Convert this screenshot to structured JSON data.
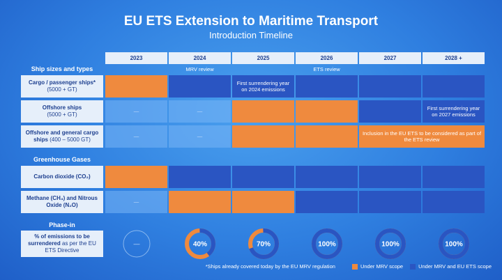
{
  "header": {
    "title": "EU ETS Extension to Maritime Transport",
    "subtitle": "Introduction Timeline"
  },
  "table": {
    "years": [
      "2023",
      "2024",
      "2025",
      "2026",
      "2027",
      "2028 +"
    ],
    "reviews": [
      null,
      "MRV review",
      null,
      "ETS review",
      null,
      null
    ],
    "sections": [
      {
        "title": "Ship sizes and types",
        "rows": [
          {
            "label": "Cargo / passenger ships*",
            "sublabel": "(5000 + GT)",
            "cells": [
              {
                "scope": 0
              },
              {
                "scope": 1
              },
              {
                "scope": 1,
                "text": "First surrendering year on 2024 emissions"
              },
              {
                "scope": 1
              },
              {
                "scope": 1
              },
              {
                "scope": 1
              }
            ]
          },
          {
            "label": "Offshore ships",
            "sublabel": "(5000 + GT)",
            "cells": [
              {
                "scope": null,
                "text": "—"
              },
              {
                "scope": null,
                "text": "—"
              },
              {
                "scope": 0
              },
              {
                "scope": 0
              },
              {
                "scope": 1
              },
              {
                "scope": 1,
                "text": "First surrendering year on 2027 emissions"
              }
            ]
          },
          {
            "label": "Offshore and general cargo ships",
            "sublabel": "(400 – 5000 GT)",
            "cells": [
              {
                "scope": null,
                "text": "—"
              },
              {
                "scope": null,
                "text": "—"
              },
              {
                "scope": 0
              },
              {
                "scope": 0
              },
              {
                "scope": 0,
                "span": 2,
                "text": "Inclusion in the EU ETS to be considered as part of the ETS review"
              }
            ]
          }
        ]
      },
      {
        "title": "Greenhouse Gases",
        "rows": [
          {
            "label": "Carbon dioxide (CO₂)",
            "cells": [
              {
                "scope": 0
              },
              {
                "scope": 1
              },
              {
                "scope": 1
              },
              {
                "scope": 1
              },
              {
                "scope": 1
              },
              {
                "scope": 1
              }
            ]
          },
          {
            "label": "Methane (CH₄) and Nitrous Oxide (N₂O)",
            "cells": [
              {
                "scope": null,
                "text": "—"
              },
              {
                "scope": 0
              },
              {
                "scope": 0
              },
              {
                "scope": 1
              },
              {
                "scope": 1
              },
              {
                "scope": 1
              }
            ]
          }
        ]
      }
    ]
  },
  "phase_in": {
    "title": "Phase-in",
    "label_bold": "% of emissions to be surrendered",
    "label_rest": "as per the EU ETS Directive",
    "empty_label": "—",
    "values": [
      40,
      70,
      100,
      100,
      100
    ],
    "value_labels": [
      "40%",
      "70%",
      "100%",
      "100%",
      "100%"
    ]
  },
  "legend": {
    "footnote": "*Ships already covered today by the EU MRV regulation",
    "items": [
      {
        "label": "Under MRV scope",
        "color": "#ef8a3e"
      },
      {
        "label": "Under MRV and EU ETS scope",
        "color": "#2a55c2"
      }
    ]
  }
}
